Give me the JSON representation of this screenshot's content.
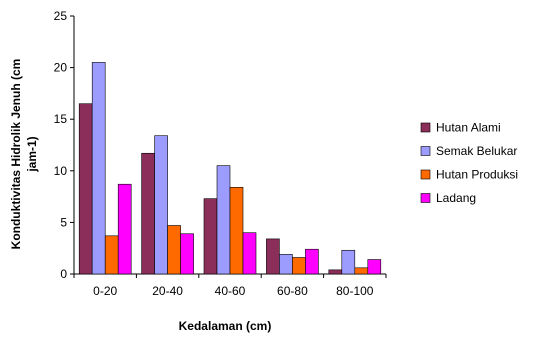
{
  "chart_data": {
    "type": "bar",
    "title": "",
    "xlabel": "Kedalaman (cm)",
    "ylabel_lines": [
      "Konduktivitas Hidrolik Jenuh (cm",
      "jam-1)"
    ],
    "ylim": [
      0,
      25
    ],
    "yticks": [
      "0",
      "5",
      "10",
      "15",
      "20",
      "25"
    ],
    "categories": [
      "0-20",
      "20-40",
      "40-60",
      "60-80",
      "80-100"
    ],
    "series": [
      {
        "name": "Hutan Alami",
        "color": "#8B2E5A",
        "values": [
          16.5,
          11.7,
          7.3,
          3.4,
          0.4
        ]
      },
      {
        "name": "Semak Belukar",
        "color": "#9C9CFF",
        "values": [
          20.5,
          13.4,
          10.5,
          1.9,
          2.3
        ]
      },
      {
        "name": "Hutan Produksi",
        "color": "#FF6A00",
        "values": [
          3.7,
          4.7,
          8.4,
          1.6,
          0.6
        ]
      },
      {
        "name": "Ladang",
        "color": "#FF00FF",
        "values": [
          8.7,
          3.9,
          4.0,
          2.4,
          1.4
        ]
      }
    ],
    "legend_position": "right",
    "grid": false
  }
}
